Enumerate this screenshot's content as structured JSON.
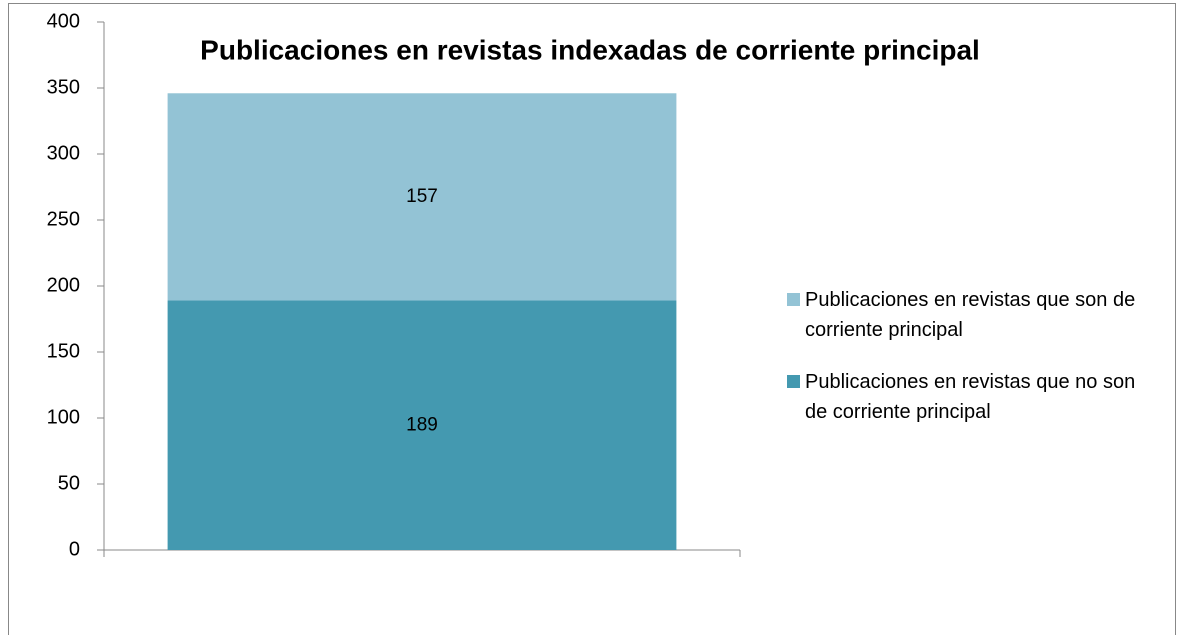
{
  "chart_data": {
    "type": "stacked_bar",
    "title": "Publicaciones en revistas indexadas de corriente principal",
    "categories": [
      null
    ],
    "series": [
      {
        "name": "Publicaciones en revistas que no son de corriente principal",
        "color": "#4499b0",
        "values": [
          189
        ]
      },
      {
        "name": "Publicaciones en revistas que son de corriente principal",
        "color": "#93c3d5",
        "values": [
          157
        ]
      }
    ],
    "ylim": [
      0,
      400
    ],
    "yticks": [
      0,
      50,
      100,
      150,
      200,
      250,
      300,
      350,
      400
    ],
    "legend": "right"
  }
}
